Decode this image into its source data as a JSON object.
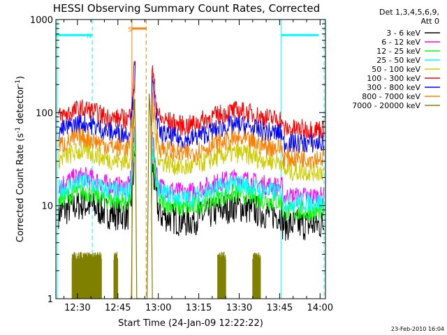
{
  "chart_data": {
    "type": "line",
    "title": "HESSI Observing Summary Count Rates, Corrected",
    "xlabel": "Start Time (24-Jan-09 12:22:22)",
    "ylabel_main": "Corrected Count Rate (s",
    "ylabel_sup1": "-1",
    "ylabel_mid": " detector",
    "ylabel_sup2": "-1",
    "ylabel_end": ")",
    "yscale": "log",
    "ylim": [
      1,
      1000
    ],
    "xlim_min": [
      0,
      100
    ],
    "x_tick_minutes": [
      8,
      23,
      38,
      53,
      68,
      83,
      98
    ],
    "x_tick_labels": [
      "12:30",
      "12:45",
      "13:00",
      "13:15",
      "13:30",
      "13:45",
      "14:00"
    ],
    "y_tick_values": [
      1,
      10,
      100,
      1000
    ],
    "y_tick_labels": [
      "1",
      "10",
      "100",
      "1000"
    ],
    "legend_header_1": "Det 1,3,4,5,6,9,",
    "legend_header_2": "Att 0",
    "series": [
      {
        "name": "3 - 6 keV",
        "color": "#000000",
        "base": 8.0
      },
      {
        "name": "6 - 12 keV",
        "color": "#ff00ff",
        "base": 16
      },
      {
        "name": "12 - 25 keV",
        "color": "#00ff00",
        "base": 11
      },
      {
        "name": "25 - 50 keV",
        "color": "#00ffff",
        "base": 14
      },
      {
        "name": "50 - 100 keV",
        "color": "#cccc00",
        "base": 30
      },
      {
        "name": "100 - 300 keV",
        "color": "#ff0000",
        "base": 85
      },
      {
        "name": "300 - 800 keV",
        "color": "#0000ff",
        "base": 60
      },
      {
        "name": "800 - 7000 keV",
        "color": "#ff8000",
        "base": 42
      },
      {
        "name": "7000 - 20000 keV",
        "color": "#808000",
        "base": 1
      }
    ],
    "saa_bars": [
      {
        "label": "N",
        "color": "#00ffff",
        "start": 0,
        "end": 13.5,
        "level": 680
      },
      {
        "label": "S",
        "color": "#ff8000",
        "start": 28.2,
        "end": 33.5,
        "level": 800
      },
      {
        "label": "",
        "color": "#00ffff",
        "start": 83.5,
        "end": 97.5,
        "level": 680
      }
    ],
    "grid": false,
    "legend_position": "right"
  },
  "footer": {
    "date_stamp": "23-Feb-2010 16:04"
  }
}
